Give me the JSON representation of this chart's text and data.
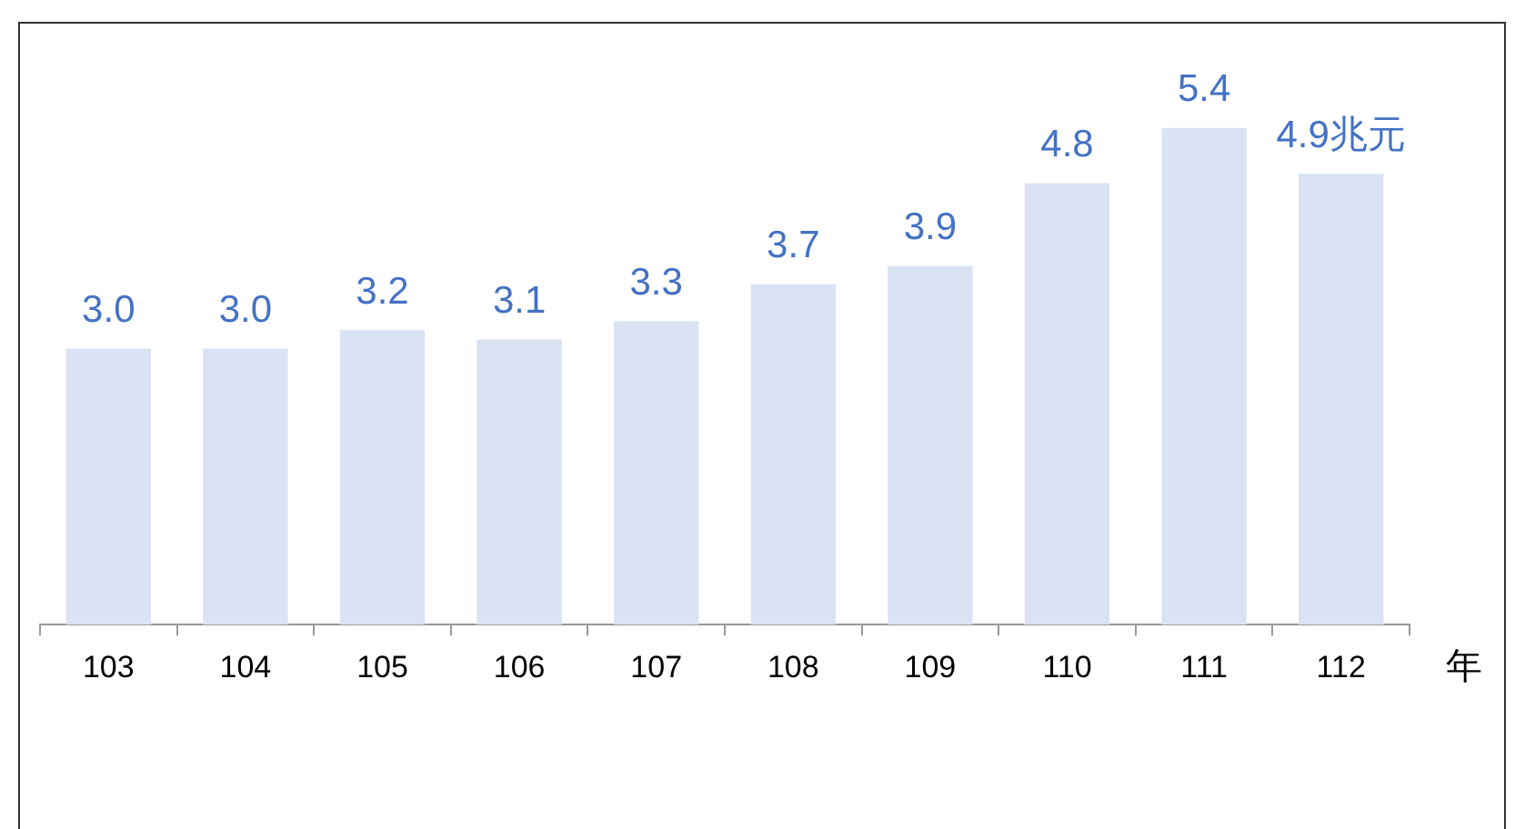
{
  "chart_data": {
    "type": "bar",
    "xlabel": "年",
    "categories": [
      "103",
      "104",
      "105",
      "106",
      "107",
      "108",
      "109",
      "110",
      "111",
      "112"
    ],
    "values": [
      3.0,
      3.0,
      3.2,
      3.1,
      3.3,
      3.7,
      3.9,
      4.8,
      5.4,
      4.9
    ],
    "value_labels": [
      "3.0",
      "3.0",
      "3.2",
      "3.1",
      "3.3",
      "3.7",
      "3.9",
      "4.8",
      "5.4",
      "4.9兆元"
    ],
    "color": "#dae3f3",
    "tick_labels": "x",
    "grid": false,
    "legend": false
  }
}
